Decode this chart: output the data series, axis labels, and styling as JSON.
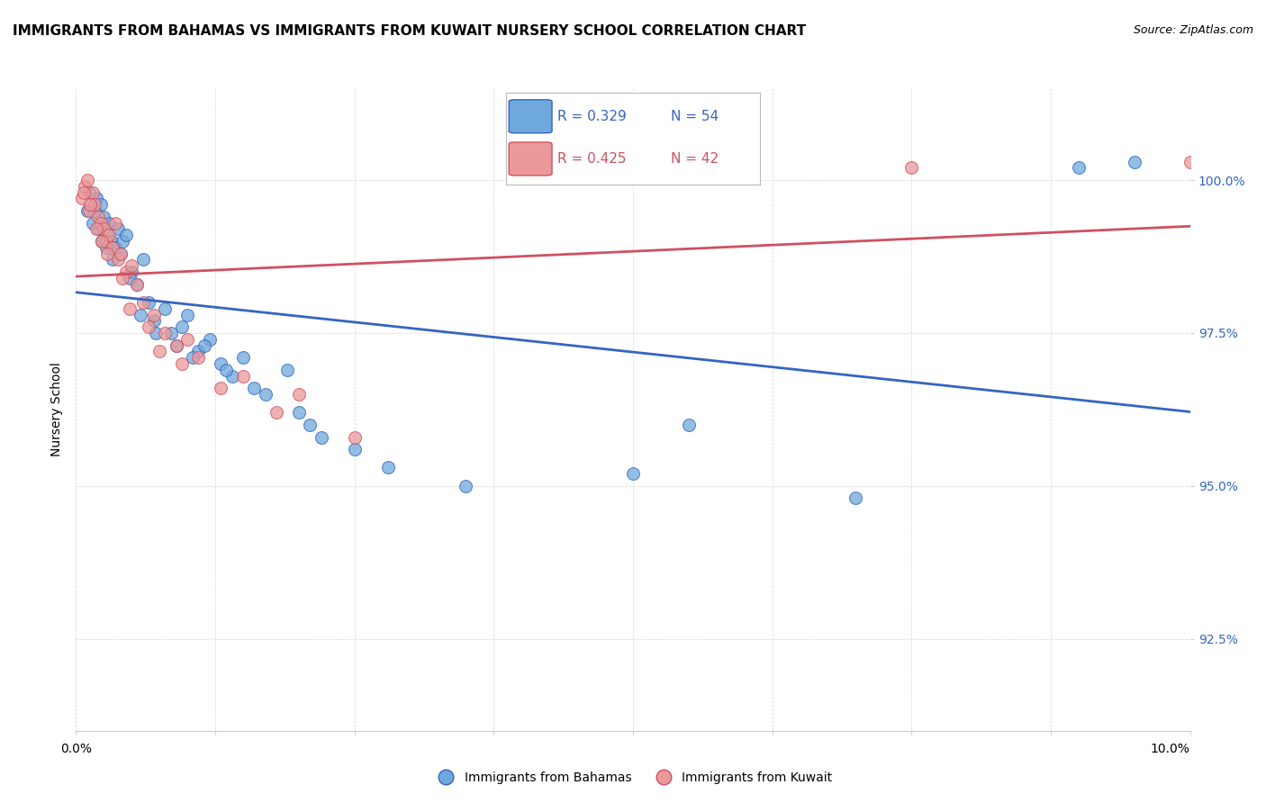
{
  "title": "IMMIGRANTS FROM BAHAMAS VS IMMIGRANTS FROM KUWAIT NURSERY SCHOOL CORRELATION CHART",
  "source": "Source: ZipAtlas.com",
  "ylabel": "Nursery School",
  "yticks": [
    92.5,
    95.0,
    97.5,
    100.0
  ],
  "ytick_labels": [
    "92.5%",
    "95.0%",
    "97.5%",
    "100.0%"
  ],
  "xlim": [
    0.0,
    10.0
  ],
  "ylim": [
    91.0,
    101.5
  ],
  "legend_bahamas": "Immigrants from Bahamas",
  "legend_kuwait": "Immigrants from Kuwait",
  "R_bahamas": "0.329",
  "N_bahamas": "54",
  "R_kuwait": "0.425",
  "N_kuwait": "42",
  "color_bahamas": "#6fa8dc",
  "color_kuwait": "#ea9999",
  "color_bahamas_line": "#3465c0",
  "color_kuwait_line": "#d05060",
  "background_color": "#ffffff",
  "grid_color": "#dddddd",
  "bahamas_x": [
    0.1,
    0.15,
    0.18,
    0.2,
    0.22,
    0.25,
    0.28,
    0.3,
    0.32,
    0.35,
    0.38,
    0.4,
    0.42,
    0.45,
    0.5,
    0.55,
    0.6,
    0.65,
    0.7,
    0.8,
    0.85,
    0.9,
    0.95,
    1.0,
    1.1,
    1.2,
    1.3,
    1.4,
    1.5,
    1.7,
    1.9,
    2.0,
    2.2,
    2.5,
    2.8,
    3.5,
    5.0,
    5.5,
    7.0,
    9.0,
    0.12,
    0.17,
    0.23,
    0.27,
    0.33,
    0.48,
    0.58,
    0.72,
    1.05,
    1.15,
    1.35,
    1.6,
    2.1,
    9.5
  ],
  "bahamas_y": [
    99.5,
    99.3,
    99.7,
    99.2,
    99.6,
    99.4,
    99.1,
    99.3,
    99.0,
    98.9,
    99.2,
    98.8,
    99.0,
    99.1,
    98.5,
    98.3,
    98.7,
    98.0,
    97.7,
    97.9,
    97.5,
    97.3,
    97.6,
    97.8,
    97.2,
    97.4,
    97.0,
    96.8,
    97.1,
    96.5,
    96.9,
    96.2,
    95.8,
    95.6,
    95.3,
    95.0,
    95.2,
    96.0,
    94.8,
    100.2,
    99.8,
    99.5,
    99.0,
    98.9,
    98.7,
    98.4,
    97.8,
    97.5,
    97.1,
    97.3,
    96.9,
    96.6,
    96.0,
    100.3
  ],
  "kuwait_x": [
    0.05,
    0.08,
    0.1,
    0.12,
    0.15,
    0.17,
    0.2,
    0.22,
    0.25,
    0.27,
    0.3,
    0.33,
    0.35,
    0.38,
    0.4,
    0.45,
    0.5,
    0.55,
    0.6,
    0.7,
    0.8,
    0.9,
    1.0,
    1.5,
    2.0,
    5.8,
    0.07,
    0.13,
    0.18,
    0.23,
    0.28,
    0.42,
    0.48,
    0.65,
    0.75,
    0.95,
    1.1,
    1.3,
    1.8,
    2.5,
    7.5,
    10.0
  ],
  "kuwait_y": [
    99.7,
    99.9,
    100.0,
    99.5,
    99.8,
    99.6,
    99.4,
    99.3,
    99.2,
    99.0,
    99.1,
    98.9,
    99.3,
    98.7,
    98.8,
    98.5,
    98.6,
    98.3,
    98.0,
    97.8,
    97.5,
    97.3,
    97.4,
    96.8,
    96.5,
    100.1,
    99.8,
    99.6,
    99.2,
    99.0,
    98.8,
    98.4,
    97.9,
    97.6,
    97.2,
    97.0,
    97.1,
    96.6,
    96.2,
    95.8,
    100.2,
    100.3
  ],
  "title_fontsize": 11,
  "axis_label_fontsize": 10,
  "tick_fontsize": 10,
  "source_fontsize": 9,
  "marker_size": 100
}
